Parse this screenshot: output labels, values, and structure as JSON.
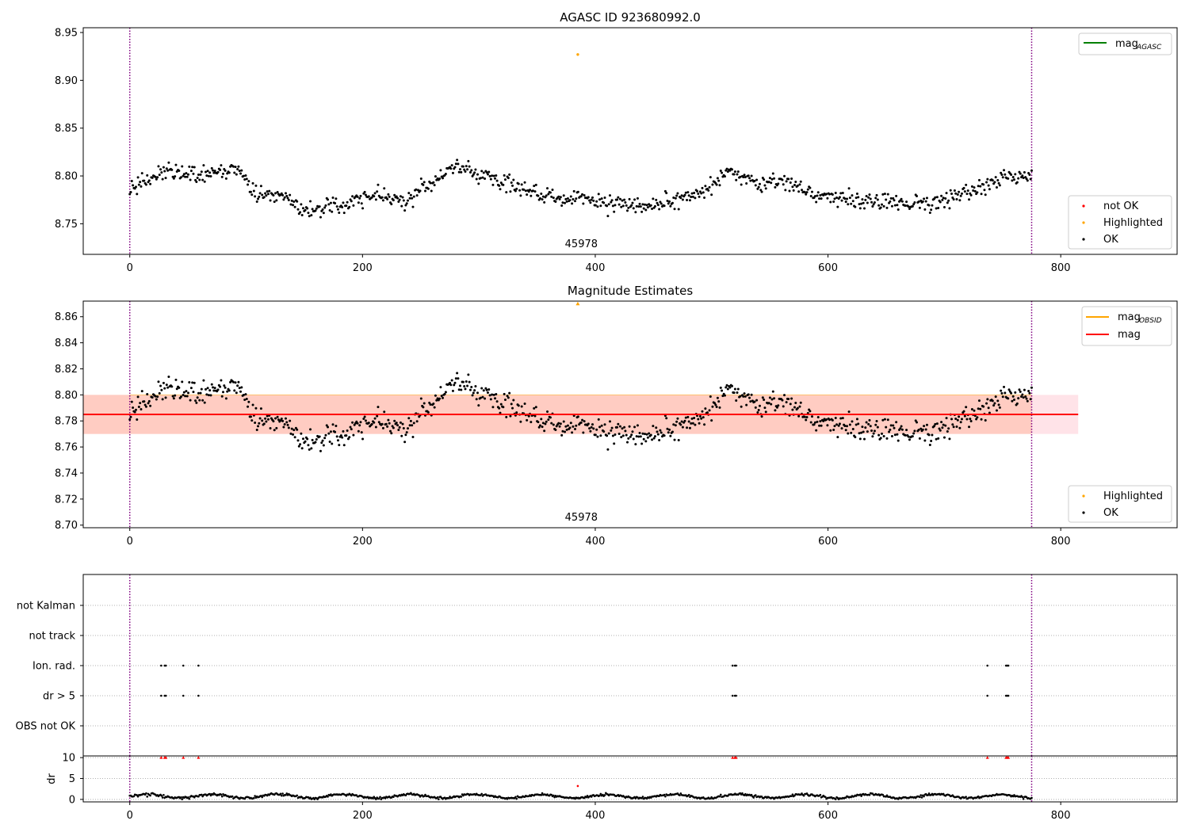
{
  "colors": {
    "ok": "#000000",
    "not_ok": "#ff0000",
    "highlight": "#ffa500",
    "agasc": "#008000",
    "mag": "#ff0000",
    "obsid": "#ffa500",
    "vline": "#800080",
    "band_outer": "#ffc0cb",
    "band_inner": "#ffa07a"
  },
  "chart_data": [
    {
      "id": "agasc",
      "type": "scatter",
      "title": "AGASC ID 923680992.0",
      "xlim": [
        -40,
        900
      ],
      "ylim": [
        8.718,
        8.955
      ],
      "xticks": [
        0,
        200,
        400,
        600,
        800
      ],
      "yticks": [
        8.75,
        8.8,
        8.85,
        8.9,
        8.95
      ],
      "ytick_labels": [
        "8.75",
        "8.80",
        "8.85",
        "8.90",
        "8.95"
      ],
      "vlines": [
        0,
        775
      ],
      "annotation": {
        "text": "45978",
        "x": 388
      },
      "legend_lines": [
        {
          "label": "mag",
          "sub": "AGASC",
          "color": "#008000"
        }
      ],
      "legend_points": [
        {
          "label": "not OK",
          "color": "#ff0000"
        },
        {
          "label": "Highlighted",
          "color": "#ffa500"
        },
        {
          "label": "OK",
          "color": "#000000"
        }
      ],
      "highlight_points": [
        [
          385,
          8.927
        ]
      ]
    },
    {
      "id": "mag",
      "type": "scatter",
      "title": "Magnitude Estimates",
      "xlim": [
        -40,
        900
      ],
      "ylim": [
        8.698,
        8.872
      ],
      "xticks": [
        0,
        200,
        400,
        600,
        800
      ],
      "yticks": [
        8.7,
        8.72,
        8.74,
        8.76,
        8.78,
        8.8,
        8.82,
        8.84,
        8.86
      ],
      "ytick_labels": [
        "8.70",
        "8.72",
        "8.74",
        "8.76",
        "8.78",
        "8.80",
        "8.82",
        "8.84",
        "8.86"
      ],
      "vlines": [
        0,
        775
      ],
      "annotation": {
        "text": "45978",
        "x": 388
      },
      "mag_line": {
        "value": 8.785,
        "x_range": [
          -40,
          815
        ]
      },
      "band_outer": [
        8.77,
        8.8
      ],
      "band_inner": {
        "y": [
          8.77,
          8.8
        ],
        "x_range": [
          0,
          775
        ]
      },
      "legend_lines": [
        {
          "label": "mag",
          "sub": "OBSID",
          "color": "#ffa500"
        },
        {
          "label": "mag",
          "sub": "",
          "color": "#ff0000"
        }
      ],
      "legend_points": [
        {
          "label": "Highlighted",
          "color": "#ffa500"
        },
        {
          "label": "OK",
          "color": "#000000"
        }
      ],
      "highlight_points": [
        [
          385,
          8.87
        ]
      ]
    },
    {
      "id": "flags",
      "type": "scatter",
      "xlim": [
        -40,
        900
      ],
      "xticks": [
        0,
        200,
        400,
        600,
        800
      ],
      "vlines": [
        0,
        775
      ],
      "categories": [
        "not Kalman",
        "not track",
        "Ion. rad.",
        "dr > 5",
        "OBS not OK"
      ],
      "flag_points": {
        "Ion. rad.": [
          27,
          30,
          31,
          46,
          59,
          518,
          520,
          521,
          737,
          753,
          754,
          755
        ],
        "dr > 5": [
          27,
          30,
          31,
          46,
          59,
          518,
          520,
          521,
          737,
          753,
          754,
          755
        ]
      }
    },
    {
      "id": "dr",
      "type": "scatter",
      "ylabel": "dr",
      "xlim": [
        -40,
        900
      ],
      "ylim": [
        -0.6,
        10.4
      ],
      "xticks": [
        0,
        200,
        400,
        600,
        800
      ],
      "yticks": [
        0,
        5,
        10
      ],
      "ytick_labels": [
        "0",
        "5",
        "10"
      ],
      "vlines": [
        0,
        775
      ],
      "clipped_points_x": [
        27,
        30,
        31,
        46,
        59,
        518,
        520,
        521,
        737,
        753,
        754,
        755
      ],
      "red_points": [
        [
          385,
          3.2
        ]
      ],
      "series_note": "dr for OK samples hovers between 0 and ~1.5"
    }
  ]
}
